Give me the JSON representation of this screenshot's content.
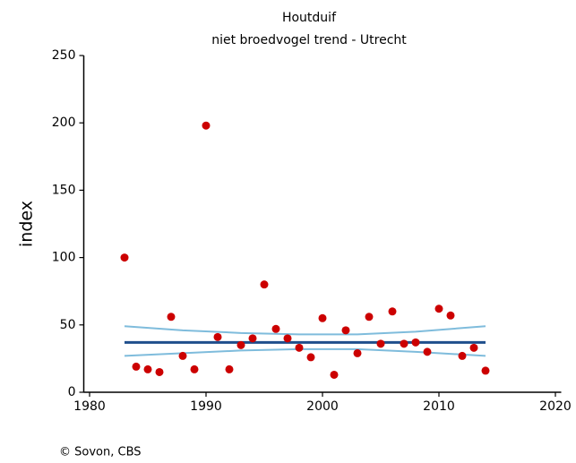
{
  "chart_data": {
    "type": "scatter",
    "title": "Houtduif",
    "subtitle": "niet broedvogel trend - Utrecht",
    "y_label": "index",
    "source": "© Sovon, CBS",
    "x": [
      1983,
      1984,
      1985,
      1986,
      1987,
      1988,
      1989,
      1990,
      1991,
      1992,
      1993,
      1994,
      1995,
      1996,
      1997,
      1998,
      1999,
      2000,
      2001,
      2002,
      2003,
      2004,
      2005,
      2006,
      2007,
      2008,
      2009,
      2010,
      2011,
      2012,
      2013,
      2014
    ],
    "values": [
      100,
      19,
      17,
      15,
      56,
      27,
      17,
      198,
      41,
      17,
      35,
      40,
      80,
      47,
      40,
      33,
      26,
      55,
      13,
      46,
      29,
      56,
      36,
      60,
      36,
      37,
      30,
      62,
      57,
      27,
      33,
      16
    ],
    "color": "#cc0000",
    "lines": [
      {
        "x": [
          1983,
          2014
        ],
        "values": [
          37,
          37
        ],
        "color": "#1f4e8c"
      },
      {
        "x": [
          1983,
          1988,
          1993,
          1998,
          2003,
          2008,
          2014
        ],
        "values": [
          49,
          46,
          44,
          43,
          43,
          45,
          49
        ],
        "color": "#7fbcdc"
      },
      {
        "x": [
          1983,
          1988,
          1993,
          1998,
          2003,
          2008,
          2014
        ],
        "values": [
          27,
          29,
          31,
          32,
          32,
          30,
          27
        ],
        "color": "#7fbcdc"
      }
    ],
    "xlim": [
      1979.5,
      2020.5
    ],
    "xticks": [
      1980,
      1990,
      2000,
      2010,
      2020
    ],
    "ylim": [
      0,
      250
    ],
    "yticks": [
      0,
      50,
      100,
      150,
      200,
      250
    ]
  }
}
